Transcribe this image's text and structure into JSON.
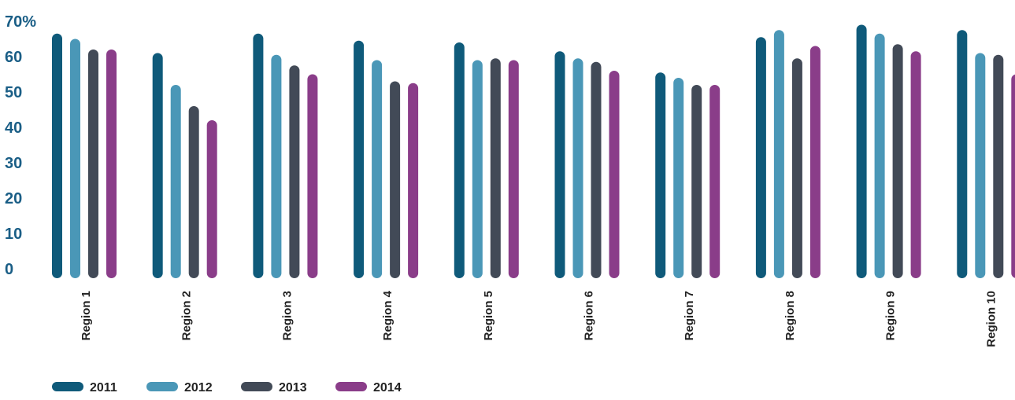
{
  "chart_data": {
    "type": "bar",
    "title": "",
    "xlabel": "",
    "ylabel": "",
    "ylim": [
      0,
      70
    ],
    "y_ticks": [
      "0",
      "10",
      "20",
      "30",
      "40",
      "50",
      "60",
      "70%"
    ],
    "y_tick_values": [
      0,
      10,
      20,
      30,
      40,
      50,
      60,
      70
    ],
    "grid": false,
    "legend_position": "bottom-left",
    "categories": [
      "Region 1",
      "Region 2",
      "Region 3",
      "Region 4",
      "Region 5",
      "Region 6",
      "Region 7",
      "Region 8",
      "Region 9",
      "Region 10"
    ],
    "series": [
      {
        "name": "2011",
        "color": "#0f5a7a",
        "values": [
          66.5,
          61,
          66.5,
          64.5,
          64,
          61.5,
          55.5,
          65.5,
          69,
          67.5
        ]
      },
      {
        "name": "2012",
        "color": "#4a97b7",
        "values": [
          65,
          52,
          60.5,
          59,
          59,
          59.5,
          54,
          67.5,
          66.5,
          61
        ]
      },
      {
        "name": "2013",
        "color": "#424a57",
        "values": [
          62,
          46,
          57.5,
          53,
          59.5,
          58.5,
          52,
          59.5,
          63.5,
          60.5
        ]
      },
      {
        "name": "2014",
        "color": "#8a3d89",
        "values": [
          62,
          42,
          55,
          52.5,
          59,
          56,
          52,
          63,
          61.5,
          55
        ]
      }
    ],
    "axis_label_color": "#1a5e86",
    "category_label_color": "#222222"
  }
}
